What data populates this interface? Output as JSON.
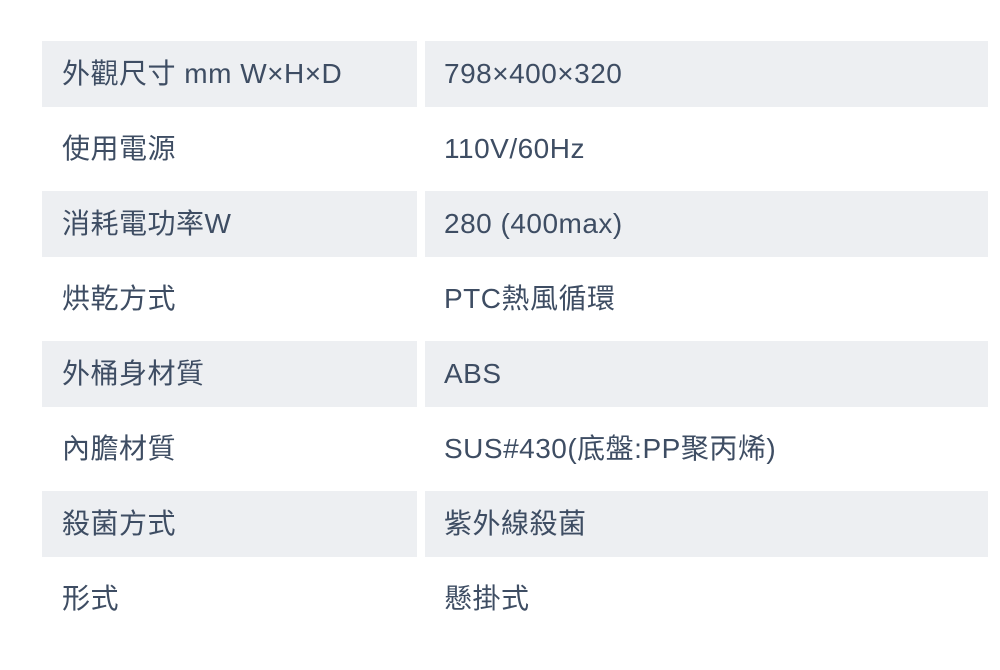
{
  "page": {
    "background_color": "#ffffff",
    "text_color": "#3e4d63",
    "shaded_row_color": "#edeff2"
  },
  "table": {
    "rows": [
      {
        "label": "外觀尺寸 mm W×H×D",
        "value": "798×400×320"
      },
      {
        "label": "使用電源",
        "value": "110V/60Hz"
      },
      {
        "label": "消耗電功率W",
        "value": "280 (400max)"
      },
      {
        "label": "烘乾方式",
        "value": "PTC熱風循環"
      },
      {
        "label": "外桶身材質",
        "value": "ABS"
      },
      {
        "label": "內膽材質",
        "value": "SUS#430(底盤:PP聚丙烯)"
      },
      {
        "label": "殺菌方式",
        "value": "紫外線殺菌"
      },
      {
        "label": "形式",
        "value": "懸掛式"
      }
    ]
  }
}
